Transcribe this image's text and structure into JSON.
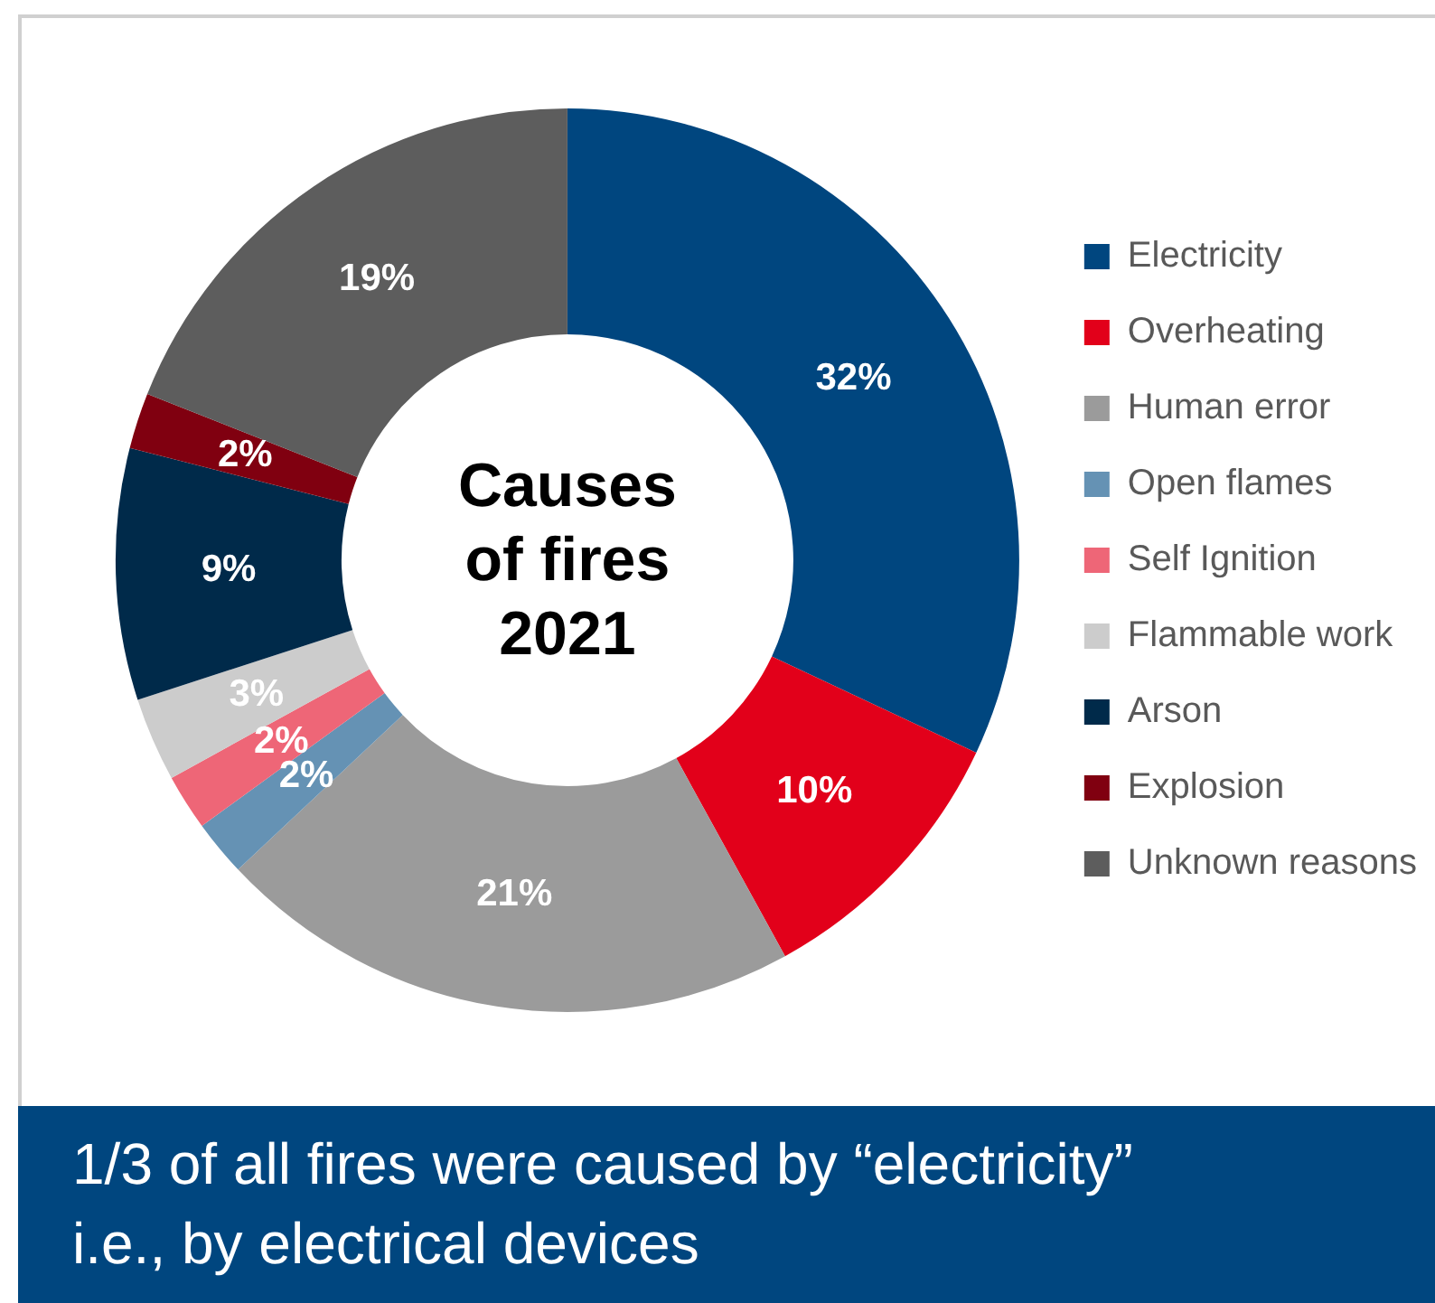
{
  "chart_data": {
    "type": "donut",
    "title": "Causes of fires 2021",
    "categories": [
      "Electricity",
      "Overheating",
      "Human error",
      "Open flames",
      "Self Ignition",
      "Flammable work",
      "Arson",
      "Explosion",
      "Unknown reasons"
    ],
    "values": [
      32,
      10,
      21,
      2,
      2,
      3,
      9,
      2,
      19
    ],
    "colors": [
      "#00467f",
      "#e2001a",
      "#9b9b9b",
      "#6592b4",
      "#ee6677",
      "#cccccc",
      "#002a4a",
      "#800010",
      "#5d5d5d"
    ],
    "value_labels": [
      "32%",
      "10%",
      "21%",
      "2%",
      "2%",
      "3%",
      "9%",
      "2%",
      "19%"
    ],
    "legend": "right",
    "annotations": [
      "1/3 of all fires were caused by “electricity”",
      "i.e., by electrical devices"
    ]
  }
}
